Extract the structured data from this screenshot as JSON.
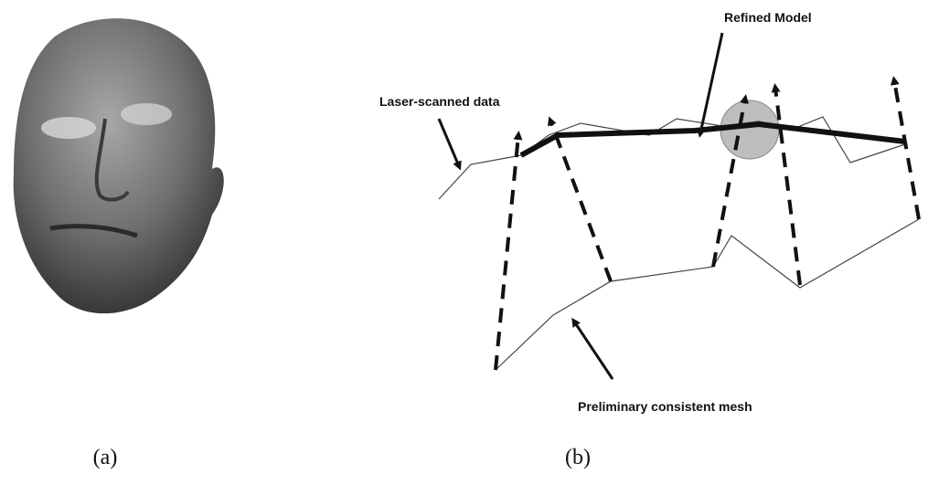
{
  "panels": [
    {
      "label": "(a)"
    },
    {
      "label": "(b)",
      "annotations": [
        "Laser-scanned data",
        "Refined Model",
        "Preliminary consistent mesh"
      ]
    }
  ]
}
